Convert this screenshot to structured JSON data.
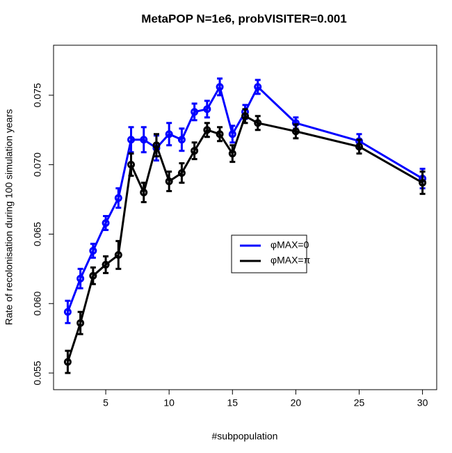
{
  "chart_data": {
    "type": "line",
    "title": "MetaPOP N=1e6, probVISITER=0.001",
    "x_label": "#subpopulation",
    "y_label": "Rate of recolonisation during 100 simulation years",
    "x": [
      2,
      3,
      4,
      5,
      6,
      7,
      8,
      9,
      10,
      11,
      12,
      13,
      14,
      15,
      16,
      17,
      20,
      25,
      30
    ],
    "series": [
      {
        "name": "φMAX=0",
        "color": "#0000ff",
        "values": [
          0.0594,
          0.0618,
          0.0638,
          0.0658,
          0.0676,
          0.0718,
          0.0718,
          0.0712,
          0.0722,
          0.0718,
          0.0738,
          0.074,
          0.0756,
          0.0722,
          0.0738,
          0.0756,
          0.073,
          0.0717,
          0.069
        ],
        "errors": [
          0.0008,
          0.0007,
          0.0005,
          0.0005,
          0.0007,
          0.0009,
          0.0009,
          0.0009,
          0.0008,
          0.0008,
          0.0006,
          0.0006,
          0.0006,
          0.0006,
          0.0005,
          0.0005,
          0.0004,
          0.0005,
          0.0007
        ]
      },
      {
        "name": "φMAX=π",
        "color": "#000000",
        "values": [
          0.0558,
          0.0586,
          0.062,
          0.0628,
          0.0635,
          0.07,
          0.068,
          0.0714,
          0.0688,
          0.0694,
          0.071,
          0.0725,
          0.0722,
          0.0708,
          0.0735,
          0.073,
          0.0724,
          0.0713,
          0.0687
        ],
        "errors": [
          0.0008,
          0.0008,
          0.0006,
          0.0006,
          0.001,
          0.0008,
          0.0007,
          0.0008,
          0.0007,
          0.0007,
          0.0006,
          0.0005,
          0.0005,
          0.0006,
          0.0005,
          0.0005,
          0.0005,
          0.0005,
          0.0008
        ]
      }
    ],
    "xlim": [
      0.88,
      31.12
    ],
    "ylim": [
      0.0538,
      0.0786
    ],
    "xticks": [
      5,
      10,
      15,
      20,
      25,
      30
    ],
    "yticks": [
      0.055,
      {
        "value": 0.06,
        "label": "0.060"
      },
      0.065,
      {
        "value": 0.07,
        "label": "0.070"
      },
      0.075
    ],
    "legend": "right"
  }
}
